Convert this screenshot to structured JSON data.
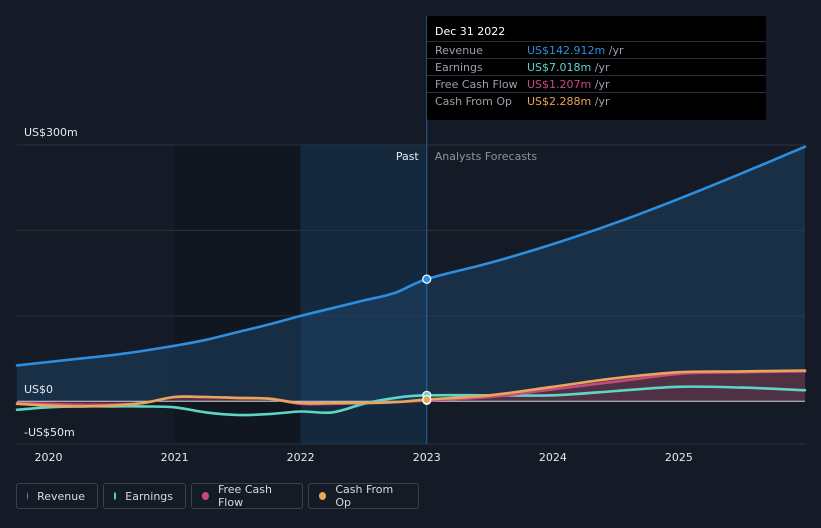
{
  "chart_data": {
    "type": "line",
    "y_axis": {
      "labels": [
        "US$300m",
        "US$0",
        "-US$50m"
      ],
      "ylim": [
        -50,
        300
      ],
      "unit": "US$m"
    },
    "x_axis": {
      "tick_labels": [
        "2020",
        "2021",
        "2022",
        "2023",
        "2024",
        "2025"
      ],
      "xlim": [
        2019.75,
        2026.0
      ]
    },
    "divider_labels": {
      "past": "Past",
      "forecast": "Analysts Forecasts"
    },
    "divider_x": 2023.0,
    "series": [
      {
        "name": "Revenue",
        "color": "#2d8ee0",
        "x": [
          2019.75,
          2020.0,
          2020.25,
          2020.5,
          2020.75,
          2021.0,
          2021.25,
          2021.5,
          2021.75,
          2022.0,
          2022.25,
          2022.5,
          2022.75,
          2023.0,
          2023.5,
          2024.0,
          2024.5,
          2025.0,
          2025.5,
          2026.0
        ],
        "values": [
          42,
          46,
          50,
          54,
          59,
          65,
          72,
          81,
          90,
          100,
          109,
          118,
          127,
          143,
          162,
          184,
          209,
          237,
          267,
          298
        ]
      },
      {
        "name": "Earnings",
        "color": "#5fd6c4",
        "x": [
          2019.75,
          2020.0,
          2020.25,
          2020.5,
          2020.75,
          2021.0,
          2021.25,
          2021.5,
          2021.75,
          2022.0,
          2022.25,
          2022.5,
          2022.75,
          2023.0,
          2023.5,
          2024.0,
          2024.5,
          2025.0,
          2025.5,
          2026.0
        ],
        "values": [
          -10,
          -7,
          -6,
          -6,
          -6,
          -7,
          -13,
          -16,
          -15,
          -12,
          -13,
          -3,
          4,
          7,
          7,
          7,
          12,
          17,
          16,
          13
        ]
      },
      {
        "name": "Free Cash Flow",
        "color": "#c64a80",
        "x": [
          2019.75,
          2020.0,
          2020.25,
          2020.5,
          2020.75,
          2021.0,
          2021.25,
          2021.5,
          2021.75,
          2022.0,
          2022.25,
          2022.5,
          2022.75,
          2023.0,
          2023.5,
          2024.0,
          2024.5,
          2025.0,
          2025.5,
          2026.0
        ],
        "values": [
          -2,
          -3,
          -4,
          -4,
          -2,
          5,
          5,
          4,
          3,
          -3,
          -3,
          -2,
          -1,
          1,
          5,
          14,
          23,
          32,
          34,
          35
        ]
      },
      {
        "name": "Cash From Op",
        "color": "#e8a55b",
        "x": [
          2019.75,
          2020.0,
          2020.25,
          2020.5,
          2020.75,
          2021.0,
          2021.25,
          2021.5,
          2021.75,
          2022.0,
          2022.25,
          2022.5,
          2022.75,
          2023.0,
          2023.5,
          2024.0,
          2024.5,
          2025.0,
          2025.5,
          2026.0
        ],
        "values": [
          -3,
          -5,
          -6,
          -5,
          -2,
          5,
          5,
          4,
          3,
          -2,
          -2,
          -2,
          -1,
          2,
          7,
          17,
          27,
          34,
          35,
          36
        ]
      }
    ],
    "highlight_x": 2023.0,
    "grid": true
  },
  "tooltip": {
    "date": "Dec 31 2022",
    "unit": "/yr",
    "rows": [
      {
        "name": "Revenue",
        "value": "US$142.912m",
        "color": "#2d8ee0"
      },
      {
        "name": "Earnings",
        "value": "US$7.018m",
        "color": "#5fd6c4"
      },
      {
        "name": "Free Cash Flow",
        "value": "US$1.207m",
        "color": "#c64a80"
      },
      {
        "name": "Cash From Op",
        "value": "US$2.288m",
        "color": "#e8a55b"
      }
    ]
  },
  "legend": [
    {
      "label": "Revenue",
      "color": "#2d8ee0"
    },
    {
      "label": "Earnings",
      "color": "#5fd6c4"
    },
    {
      "label": "Free Cash Flow",
      "color": "#c64a80"
    },
    {
      "label": "Cash From Op",
      "color": "#e8a55b"
    }
  ]
}
